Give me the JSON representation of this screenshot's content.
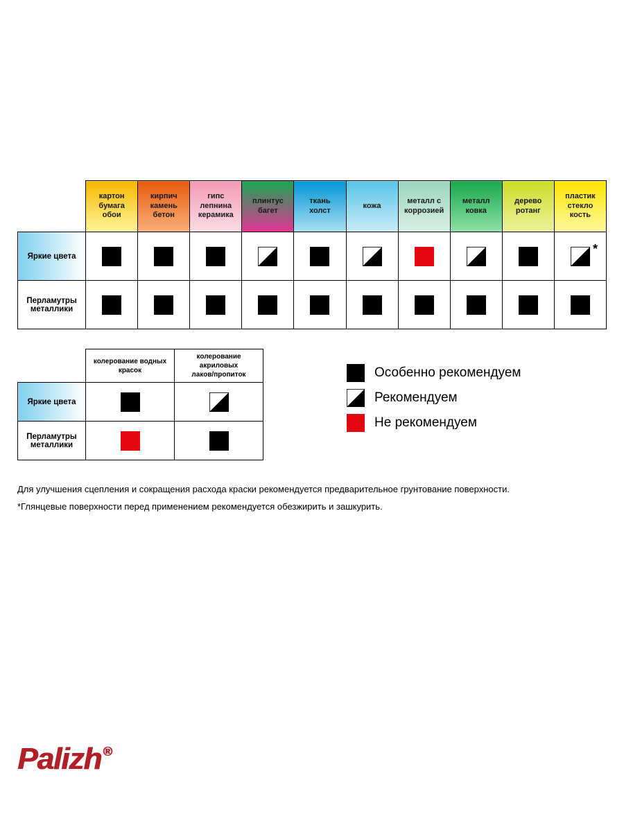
{
  "colors": {
    "black": "#000000",
    "red": "#e30613",
    "white": "#ffffff",
    "row_bright_grad_from": "#7fd0ef",
    "row_bright_grad_to": "#ffffff"
  },
  "main_table": {
    "col_headers": [
      {
        "label": "картон\nбумага\nобои",
        "grad_from": "#f6b800",
        "grad_to": "#fff59a"
      },
      {
        "label": "кирпич\nкамень\nбетон",
        "grad_from": "#e95a0c",
        "grad_to": "#f7b07a"
      },
      {
        "label": "гипс\nлепнина\nкерамика",
        "grad_from": "#f29ab5",
        "grad_to": "#fcdde6"
      },
      {
        "label": "плинтус\nбагет",
        "grad_from": "#18a651",
        "grad_to": "#e53397"
      },
      {
        "label": "ткань\nхолст",
        "grad_from": "#0097d6",
        "grad_to": "#a9dff2"
      },
      {
        "label": "кожа",
        "grad_from": "#58c5e8",
        "grad_to": "#c9ecf7"
      },
      {
        "label": "металл с\nкоррозией",
        "grad_from": "#9cd4bf",
        "grad_to": "#d8f0e6"
      },
      {
        "label": "металл\nковка",
        "grad_from": "#19a84d",
        "grad_to": "#8fe0a8"
      },
      {
        "label": "дерево\nротанг",
        "grad_from": "#cddc29",
        "grad_to": "#ecf29c"
      },
      {
        "label": "пластик\nстекло\nкость",
        "grad_from": "#ffe500",
        "grad_to": "#fff7a0"
      }
    ],
    "row_headers": [
      {
        "label": "Яркие цвета",
        "style": "bright"
      },
      {
        "label": "Перламутры\nметаллики",
        "style": "plain"
      }
    ],
    "cells": [
      [
        {
          "s": "black"
        },
        {
          "s": "black"
        },
        {
          "s": "black"
        },
        {
          "s": "half"
        },
        {
          "s": "black"
        },
        {
          "s": "half"
        },
        {
          "s": "red"
        },
        {
          "s": "half"
        },
        {
          "s": "black"
        },
        {
          "s": "half",
          "star": true
        }
      ],
      [
        {
          "s": "black"
        },
        {
          "s": "black"
        },
        {
          "s": "black"
        },
        {
          "s": "black"
        },
        {
          "s": "black"
        },
        {
          "s": "black"
        },
        {
          "s": "black"
        },
        {
          "s": "black"
        },
        {
          "s": "black"
        },
        {
          "s": "black"
        }
      ]
    ]
  },
  "small_table": {
    "col_headers": [
      "колерование водных\nкрасок",
      "колерование акриловых\nлаков/пропиток"
    ],
    "row_headers": [
      {
        "label": "Яркие цвета",
        "style": "bright"
      },
      {
        "label": "Перламутры\nметаллики",
        "style": "plain"
      }
    ],
    "cells": [
      [
        {
          "s": "black"
        },
        {
          "s": "half"
        }
      ],
      [
        {
          "s": "red"
        },
        {
          "s": "black"
        }
      ]
    ]
  },
  "legend": [
    {
      "s": "black",
      "label": "Особенно рекомендуем"
    },
    {
      "s": "half",
      "label": "Рекомендуем"
    },
    {
      "s": "red",
      "label": "Не рекомендуем"
    }
  ],
  "footnotes": [
    "Для улучшения сцепления и сокращения расхода краски рекомендуется предварительное грунтование поверхности.",
    "*Глянцевые поверхности перед применением рекомендуется обезжирить и зашкурить."
  ],
  "logo": "Palizh"
}
